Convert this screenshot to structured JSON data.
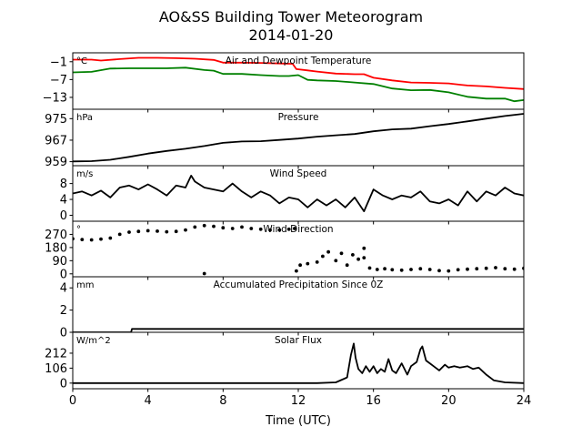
{
  "figure": {
    "title_line1": "AO&SS Building Tower Meteorogram",
    "title_line2": "2014-01-20",
    "xlabel": "Time (UTC)"
  },
  "chart_data": [
    {
      "type": "line",
      "title": "Air and Dewpoint Temperature",
      "unit": "°C",
      "ylim": [
        -17,
        2
      ],
      "yticks": [
        -1,
        -7,
        -13
      ],
      "ytick_labels": [
        "−1",
        "−7",
        "−13"
      ],
      "series": [
        {
          "name": "",
          "color": "#ff0000",
          "x": [
            0,
            1,
            1.5,
            2.5,
            3.5,
            4.5,
            5.5,
            6.5,
            7.5,
            8,
            9,
            10,
            11,
            11.7,
            11.9,
            12.5,
            13,
            14,
            15,
            15.5,
            16,
            17,
            18,
            19,
            20,
            21,
            22,
            23,
            24
          ],
          "y": [
            -0.3,
            -0.3,
            -0.6,
            -0.1,
            0.3,
            0.3,
            0.2,
            0.0,
            -0.4,
            -1.3,
            -1.3,
            -1.4,
            -1.6,
            -1.7,
            -3.5,
            -3.9,
            -4.3,
            -5.0,
            -5.2,
            -5.2,
            -6.4,
            -7.3,
            -8.0,
            -8.1,
            -8.3,
            -9.0,
            -9.3,
            -9.8,
            -10.2
          ]
        },
        {
          "name": "",
          "color": "#008000",
          "x": [
            0,
            1,
            2,
            3,
            4,
            5,
            6,
            7,
            7.5,
            8,
            9,
            10,
            11,
            11.5,
            12,
            12.5,
            13,
            14,
            15,
            16,
            17,
            18,
            19,
            20,
            21,
            22,
            23,
            23.5,
            24
          ],
          "y": [
            -4.6,
            -4.4,
            -3.3,
            -3.2,
            -3.2,
            -3.2,
            -3.0,
            -3.8,
            -4.0,
            -5.1,
            -5.1,
            -5.5,
            -5.8,
            -5.8,
            -5.5,
            -7.1,
            -7.3,
            -7.5,
            -8.0,
            -8.5,
            -10.0,
            -10.6,
            -10.5,
            -11.3,
            -12.8,
            -13.4,
            -13.4,
            -14.3,
            -13.9
          ]
        }
      ]
    },
    {
      "type": "line",
      "title": "Pressure",
      "unit": "hPa",
      "ylim": [
        957.5,
        978.5
      ],
      "yticks": [
        959,
        967,
        975
      ],
      "ytick_labels": [
        "959",
        "967",
        "975"
      ],
      "series": [
        {
          "name": "",
          "color": "#000000",
          "x": [
            0,
            1,
            2,
            3,
            4,
            5,
            6,
            7,
            8,
            9,
            10,
            11,
            12,
            13,
            14,
            15,
            16,
            17,
            18,
            19,
            20,
            21,
            22,
            23,
            24
          ],
          "y": [
            959.1,
            959.2,
            959.7,
            960.8,
            962.0,
            963.0,
            963.8,
            964.8,
            966.0,
            966.5,
            966.6,
            967.1,
            967.6,
            968.3,
            968.8,
            969.3,
            970.3,
            971.0,
            971.3,
            972.2,
            973.0,
            974.0,
            975.0,
            976.0,
            976.8
          ]
        }
      ]
    },
    {
      "type": "line",
      "title": "Wind Speed",
      "unit": "m/s",
      "ylim": [
        -1.5,
        12.5
      ],
      "yticks": [
        0,
        4,
        8
      ],
      "ytick_labels": [
        "0",
        "4",
        "8"
      ],
      "series": [
        {
          "name": "",
          "color": "#000000",
          "x": [
            0,
            0.5,
            1,
            1.5,
            2,
            2.5,
            3,
            3.5,
            4,
            4.5,
            5,
            5.5,
            6,
            6.3,
            6.5,
            7,
            7.5,
            8,
            8.5,
            9,
            9.5,
            10,
            10.5,
            11,
            11.5,
            12,
            12.5,
            13,
            13.5,
            14,
            14.5,
            15,
            15.5,
            16,
            16.5,
            17,
            17.5,
            18,
            18.5,
            19,
            19.5,
            20,
            20.5,
            21,
            21.5,
            22,
            22.5,
            23,
            23.5,
            24
          ],
          "y": [
            5.5,
            6.0,
            5.0,
            6.2,
            4.5,
            7.0,
            7.5,
            6.5,
            7.8,
            6.5,
            5.0,
            7.5,
            7.0,
            10.0,
            8.5,
            7.0,
            6.5,
            6.0,
            8.0,
            6.0,
            4.5,
            6.0,
            5.0,
            3.0,
            4.5,
            4.0,
            2.0,
            4.0,
            2.5,
            4.0,
            2.0,
            4.5,
            1.0,
            6.5,
            5.0,
            4.0,
            5.0,
            4.5,
            6.0,
            3.5,
            3.0,
            4.0,
            2.5,
            6.0,
            3.5,
            6.0,
            5.0,
            7.0,
            5.5,
            5.0
          ]
        }
      ]
    },
    {
      "type": "scatter",
      "title": "Wind Direction",
      "unit": "°",
      "ylim": [
        -20,
        360
      ],
      "yticks": [
        0,
        90,
        180,
        270
      ],
      "ytick_labels": [
        "0",
        "90",
        "180",
        "270"
      ],
      "series": [
        {
          "name": "",
          "color": "#000000",
          "x": [
            0,
            0.5,
            1,
            1.5,
            2,
            2.5,
            3,
            3.5,
            4,
            4.5,
            5,
            5.5,
            6,
            6.5,
            7,
            7.5,
            8,
            8.5,
            9,
            9.5,
            10,
            10.5,
            11,
            11.5,
            11.8,
            12.1,
            12.5,
            13,
            13.3,
            13.6,
            14,
            14.3,
            14.6,
            14.9,
            15.2,
            15.5,
            15.8,
            16.2,
            16.6,
            17,
            17.5,
            18,
            18.5,
            19,
            19.5,
            20,
            20.5,
            21,
            21.5,
            22,
            22.5,
            23,
            23.5,
            24,
            7.0,
            11.9,
            15.5
          ],
          "y": [
            240,
            235,
            232,
            238,
            245,
            270,
            285,
            290,
            295,
            292,
            288,
            290,
            300,
            320,
            330,
            325,
            315,
            310,
            320,
            310,
            305,
            300,
            300,
            305,
            310,
            60,
            70,
            80,
            120,
            150,
            90,
            140,
            60,
            130,
            100,
            110,
            40,
            30,
            35,
            28,
            25,
            30,
            35,
            30,
            22,
            20,
            28,
            32,
            35,
            38,
            42,
            35,
            32,
            38,
            2,
            20,
            175
          ]
        }
      ]
    },
    {
      "type": "line",
      "title": "Accumulated Precipitation Since 0Z",
      "unit": "mm",
      "ylim": [
        0,
        5
      ],
      "yticks": [
        0,
        2,
        4
      ],
      "ytick_labels": [
        "0",
        "2",
        "4"
      ],
      "series": [
        {
          "name": "",
          "color": "#000000",
          "x": [
            0,
            3.1,
            3.15,
            24
          ],
          "y": [
            0,
            0,
            0.3,
            0.3
          ]
        }
      ]
    },
    {
      "type": "line",
      "title": "Solar Flux",
      "unit": "W/m^2",
      "ylim": [
        -40,
        360
      ],
      "yticks": [
        0,
        106,
        212
      ],
      "ytick_labels": [
        "0",
        "106",
        "212"
      ],
      "series": [
        {
          "name": "",
          "color": "#000000",
          "x": [
            0,
            12,
            13,
            14,
            14.6,
            14.8,
            14.95,
            15.05,
            15.2,
            15.4,
            15.6,
            15.8,
            16.0,
            16.2,
            16.4,
            16.6,
            16.8,
            17.0,
            17.2,
            17.5,
            17.8,
            18.0,
            18.3,
            18.5,
            18.6,
            18.8,
            19.0,
            19.3,
            19.5,
            19.8,
            20.0,
            20.3,
            20.6,
            21.0,
            21.3,
            21.6,
            22.0,
            22.4,
            23.0,
            24
          ],
          "y": [
            0,
            0,
            0,
            5,
            40,
            200,
            280,
            180,
            100,
            70,
            120,
            80,
            120,
            70,
            100,
            80,
            170,
            90,
            70,
            140,
            60,
            120,
            150,
            240,
            260,
            160,
            140,
            110,
            90,
            130,
            110,
            120,
            110,
            120,
            100,
            110,
            60,
            20,
            5,
            0
          ]
        }
      ]
    }
  ],
  "xaxis": {
    "xlim": [
      0,
      24
    ],
    "ticks": [
      0,
      4,
      8,
      12,
      16,
      20,
      24
    ],
    "tick_labels": [
      "0",
      "4",
      "8",
      "12",
      "16",
      "20",
      "24"
    ]
  }
}
